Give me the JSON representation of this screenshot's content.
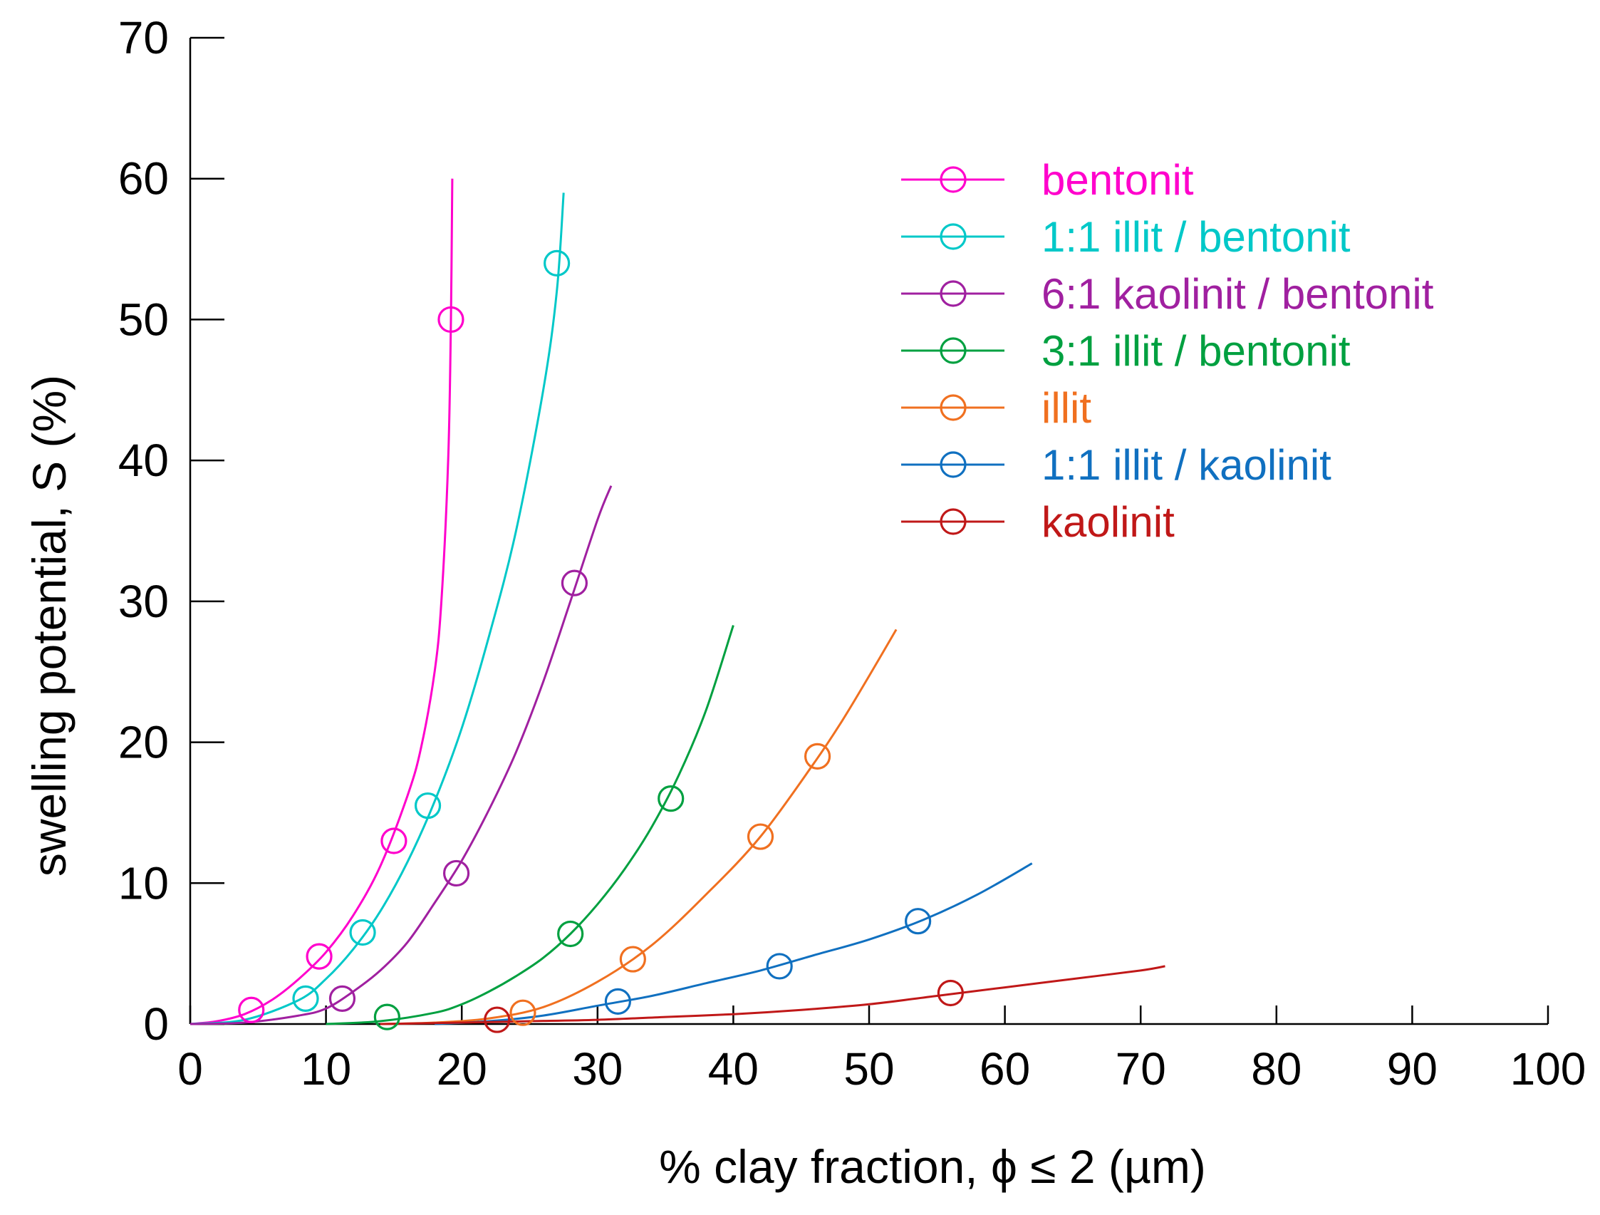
{
  "chart_data": {
    "type": "scatter",
    "title": "",
    "xlabel": "% clay fraction, ϕ ≤ 2 (µm)",
    "ylabel": "swelling potential, S (%)",
    "xlim": [
      0,
      100
    ],
    "ylim": [
      0,
      70
    ],
    "xticks": [
      "0",
      "10",
      "20",
      "30",
      "40",
      "50",
      "60",
      "70",
      "80",
      "90",
      "100"
    ],
    "yticks": [
      "0",
      "10",
      "20",
      "30",
      "40",
      "50",
      "60",
      "70"
    ],
    "legend_position": "top-right",
    "grid": false,
    "series": [
      {
        "name": "bentonit",
        "color": "#ff00cc",
        "points": [
          [
            4.5,
            1.0
          ],
          [
            9.5,
            4.8
          ],
          [
            15.0,
            13.0
          ],
          [
            19.2,
            50.0
          ]
        ],
        "curve": [
          [
            0,
            0
          ],
          [
            2,
            0.2
          ],
          [
            4,
            0.7
          ],
          [
            6,
            1.7
          ],
          [
            8,
            3.2
          ],
          [
            10,
            5.1
          ],
          [
            12,
            7.7
          ],
          [
            14,
            11.2
          ],
          [
            16,
            16.2
          ],
          [
            17,
            19.6
          ],
          [
            18,
            25.0
          ],
          [
            18.5,
            30.0
          ],
          [
            19.0,
            40.0
          ],
          [
            19.2,
            50.0
          ],
          [
            19.3,
            60.0
          ]
        ]
      },
      {
        "name": "1:1 illit / bentonit",
        "color": "#00c8c8",
        "points": [
          [
            8.5,
            1.8
          ],
          [
            12.7,
            6.5
          ],
          [
            17.5,
            15.5
          ],
          [
            27.0,
            54.0
          ]
        ],
        "curve": [
          [
            0,
            0
          ],
          [
            4,
            0.3
          ],
          [
            8,
            1.7
          ],
          [
            10,
            3.2
          ],
          [
            12,
            5.3
          ],
          [
            14,
            8.0
          ],
          [
            16,
            11.5
          ],
          [
            18,
            15.8
          ],
          [
            20,
            21.0
          ],
          [
            22,
            27.5
          ],
          [
            24,
            35.0
          ],
          [
            26,
            45.0
          ],
          [
            27.0,
            52.0
          ],
          [
            27.5,
            59.0
          ]
        ]
      },
      {
        "name": "6:1 kaolinit / bentonit",
        "color": "#a020a0",
        "points": [
          [
            11.2,
            1.8
          ],
          [
            19.6,
            10.7
          ],
          [
            28.3,
            31.3
          ]
        ],
        "curve": [
          [
            0,
            0
          ],
          [
            4,
            0.1
          ],
          [
            8,
            0.6
          ],
          [
            10,
            1.1
          ],
          [
            12,
            2.3
          ],
          [
            14,
            3.8
          ],
          [
            16,
            5.8
          ],
          [
            18,
            8.6
          ],
          [
            20,
            11.6
          ],
          [
            22,
            15.2
          ],
          [
            24,
            19.3
          ],
          [
            26,
            24.3
          ],
          [
            28,
            30.0
          ],
          [
            30,
            35.8
          ],
          [
            31,
            38.2
          ]
        ]
      },
      {
        "name": "3:1 illit / bentonit",
        "color": "#00a040",
        "points": [
          [
            14.5,
            0.5
          ],
          [
            28.0,
            6.4
          ],
          [
            35.4,
            16.0
          ]
        ],
        "curve": [
          [
            10,
            0
          ],
          [
            14,
            0.2
          ],
          [
            18,
            0.8
          ],
          [
            20,
            1.4
          ],
          [
            22,
            2.3
          ],
          [
            24,
            3.4
          ],
          [
            26,
            4.7
          ],
          [
            28,
            6.4
          ],
          [
            30,
            8.5
          ],
          [
            32,
            11.0
          ],
          [
            34,
            14.0
          ],
          [
            36,
            17.7
          ],
          [
            38,
            22.3
          ],
          [
            40,
            28.3
          ]
        ]
      },
      {
        "name": "illit",
        "color": "#f07020",
        "points": [
          [
            24.5,
            0.8
          ],
          [
            32.6,
            4.6
          ],
          [
            42.0,
            13.3
          ],
          [
            46.2,
            19.0
          ]
        ],
        "curve": [
          [
            14,
            0
          ],
          [
            18,
            0.1
          ],
          [
            22,
            0.4
          ],
          [
            26,
            1.2
          ],
          [
            30,
            3.0
          ],
          [
            34,
            5.6
          ],
          [
            38,
            9.2
          ],
          [
            42,
            13.3
          ],
          [
            46,
            18.6
          ],
          [
            48,
            21.5
          ],
          [
            50,
            24.7
          ],
          [
            52,
            28.0
          ]
        ]
      },
      {
        "name": "1:1 illit / kaolinit",
        "color": "#1070c0",
        "points": [
          [
            31.5,
            1.6
          ],
          [
            43.4,
            4.1
          ],
          [
            53.6,
            7.3
          ]
        ],
        "curve": [
          [
            18,
            0
          ],
          [
            22,
            0.2
          ],
          [
            26,
            0.6
          ],
          [
            30,
            1.3
          ],
          [
            34,
            2.0
          ],
          [
            38,
            2.9
          ],
          [
            42,
            3.8
          ],
          [
            46,
            4.9
          ],
          [
            50,
            6.0
          ],
          [
            54,
            7.4
          ],
          [
            58,
            9.2
          ],
          [
            62,
            11.4
          ]
        ]
      },
      {
        "name": "kaolinit",
        "color": "#c01818",
        "points": [
          [
            22.6,
            0.3
          ],
          [
            56.0,
            2.2
          ]
        ],
        "curve": [
          [
            14,
            0
          ],
          [
            20,
            0.1
          ],
          [
            25,
            0.2
          ],
          [
            30,
            0.3
          ],
          [
            35,
            0.5
          ],
          [
            40,
            0.7
          ],
          [
            45,
            1.0
          ],
          [
            50,
            1.4
          ],
          [
            55,
            2.0
          ],
          [
            60,
            2.6
          ],
          [
            65,
            3.2
          ],
          [
            70,
            3.8
          ],
          [
            71.8,
            4.1
          ]
        ]
      }
    ]
  }
}
